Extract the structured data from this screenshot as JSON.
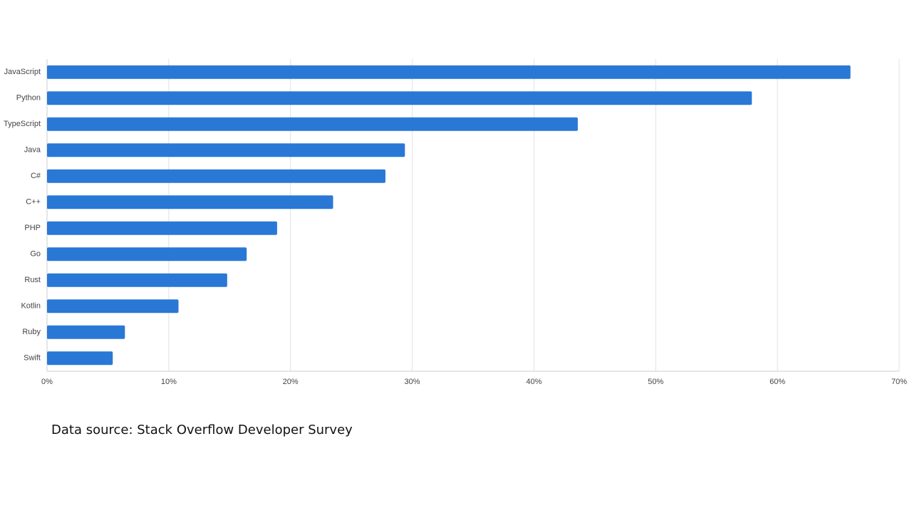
{
  "chart_data": {
    "type": "barh",
    "categories": [
      "JavaScript",
      "Python",
      "TypeScript",
      "Java",
      "C#",
      "C++",
      "PHP",
      "Go",
      "Rust",
      "Kotlin",
      "Ruby",
      "Swift"
    ],
    "values": [
      66.0,
      57.9,
      43.6,
      29.4,
      27.8,
      23.5,
      18.9,
      16.4,
      14.8,
      10.8,
      6.4,
      5.4
    ],
    "color": "#2a78d6",
    "xlim": [
      0,
      70
    ],
    "xticks": [
      {
        "value": 0,
        "label": "0%"
      },
      {
        "value": 10,
        "label": "10%"
      },
      {
        "value": 20,
        "label": "20%"
      },
      {
        "value": 30,
        "label": "30%"
      },
      {
        "value": 40,
        "label": "40%"
      },
      {
        "value": 50,
        "label": "50%"
      },
      {
        "value": 60,
        "label": "60%"
      },
      {
        "value": 70,
        "label": "70%"
      }
    ],
    "grid": true,
    "caption": "Data source: Stack Overflow Developer Survey"
  }
}
